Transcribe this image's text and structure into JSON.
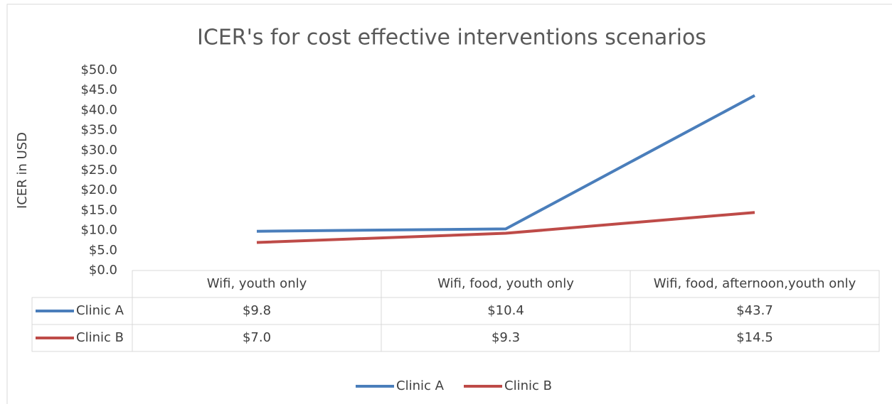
{
  "chart_data": {
    "type": "line",
    "title": "ICER's for cost effective interventions scenarios",
    "y_label": "ICER in USD",
    "categories": [
      "Wifi, youth only",
      "Wifi, food, youth only",
      "Wifi, food, afternoon,youth only"
    ],
    "series": [
      {
        "name": "Clinic A",
        "color": "#4a7ebb",
        "values": [
          9.8,
          10.4,
          43.7
        ],
        "value_labels": [
          "$9.8",
          "$10.4",
          "$43.7"
        ]
      },
      {
        "name": "Clinic B",
        "color": "#be4b48",
        "values": [
          7.0,
          9.3,
          14.5
        ],
        "value_labels": [
          "$7.0",
          "$9.3",
          "$14.5"
        ]
      }
    ],
    "ylim": [
      0,
      50
    ],
    "yticks": [
      {
        "value": 0,
        "label": "$0.0"
      },
      {
        "value": 5,
        "label": "$5.0"
      },
      {
        "value": 10,
        "label": "$10.0"
      },
      {
        "value": 15,
        "label": "$15.0"
      },
      {
        "value": 20,
        "label": "$20.0"
      },
      {
        "value": 25,
        "label": "$25.0"
      },
      {
        "value": 30,
        "label": "$30.0"
      },
      {
        "value": 35,
        "label": "$35.0"
      },
      {
        "value": 40,
        "label": "$40.0"
      },
      {
        "value": 45,
        "label": "$45.0"
      },
      {
        "value": 50,
        "label": "$50.0"
      }
    ],
    "grid": false,
    "legend": "bottom"
  }
}
